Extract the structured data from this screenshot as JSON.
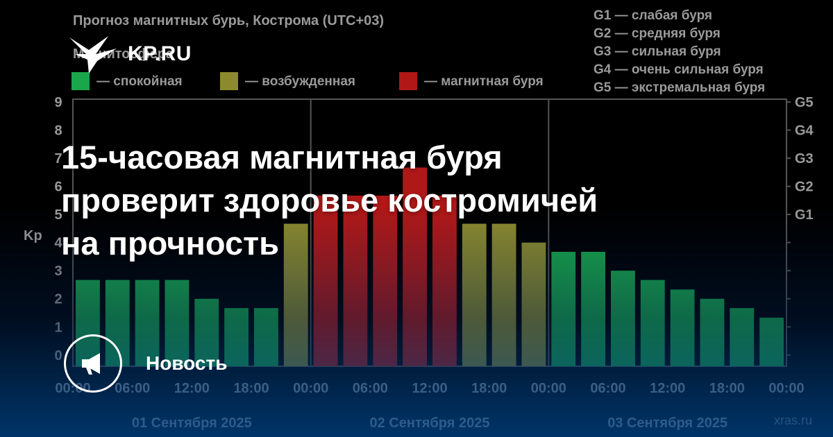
{
  "brand": {
    "logo_text": "KP.RU"
  },
  "headline": {
    "lines": [
      "15-часовая магнитная буря",
      "проверит здоровье костромичей",
      "на прочность"
    ]
  },
  "badge": {
    "label": "Новость",
    "icon": "megaphone-icon"
  },
  "colors": {
    "calm": "#1aa64a",
    "excited": "#8c8a2e",
    "storm": "#b01818",
    "grid": "#555555",
    "text_gray": "#9a9a9a"
  },
  "chart_data": {
    "type": "bar",
    "title": "Прогноз магнитных бурь, Кострома (UTC+03)",
    "subtitle": "Магнитосфера",
    "ylabel": "Kp",
    "ylim": [
      0,
      9
    ],
    "y_ticks": [
      "0",
      "1",
      "2",
      "3",
      "4",
      "5",
      "6",
      "7",
      "8",
      "9"
    ],
    "g_ticks": [
      {
        "label": "G1",
        "kp": 5
      },
      {
        "label": "G2",
        "kp": 6
      },
      {
        "label": "G3",
        "kp": 7
      },
      {
        "label": "G4",
        "kp": 8
      },
      {
        "label": "G5",
        "kp": 9
      }
    ],
    "storm_scale": [
      "G1 — слабая буря",
      "G2 — средняя буря",
      "G3 — сильная буря",
      "G4 — очень сильная буря",
      "G5 — экстремальная буря"
    ],
    "legend": [
      {
        "label": "— спокойная",
        "level": "calm"
      },
      {
        "label": "— возбужденная",
        "level": "excited"
      },
      {
        "label": "— магнитная буря",
        "level": "storm"
      }
    ],
    "x_tick_labels": [
      "00:00",
      "06:00",
      "12:00",
      "18:00",
      "00:00",
      "06:00",
      "12:00",
      "18:00",
      "00:00",
      "06:00",
      "12:00",
      "18:00",
      "00:00"
    ],
    "days": [
      "01 Сентября 2025",
      "02 Сентября 2025",
      "03 Сентября 2025"
    ],
    "values": [
      2.67,
      2.67,
      2.67,
      2.67,
      2.0,
      1.67,
      1.67,
      4.67,
      5.67,
      5.67,
      5.67,
      6.67,
      5.67,
      4.67,
      4.67,
      4.0,
      3.67,
      3.67,
      3.0,
      2.67,
      2.33,
      2.0,
      1.67,
      1.33
    ],
    "levels": [
      "calm",
      "calm",
      "calm",
      "calm",
      "calm",
      "calm",
      "calm",
      "excited",
      "storm",
      "storm",
      "storm",
      "storm",
      "storm",
      "excited",
      "excited",
      "excited",
      "calm",
      "calm",
      "calm",
      "calm",
      "calm",
      "calm",
      "calm",
      "calm"
    ],
    "source": "xras.ru",
    "grid": true
  }
}
